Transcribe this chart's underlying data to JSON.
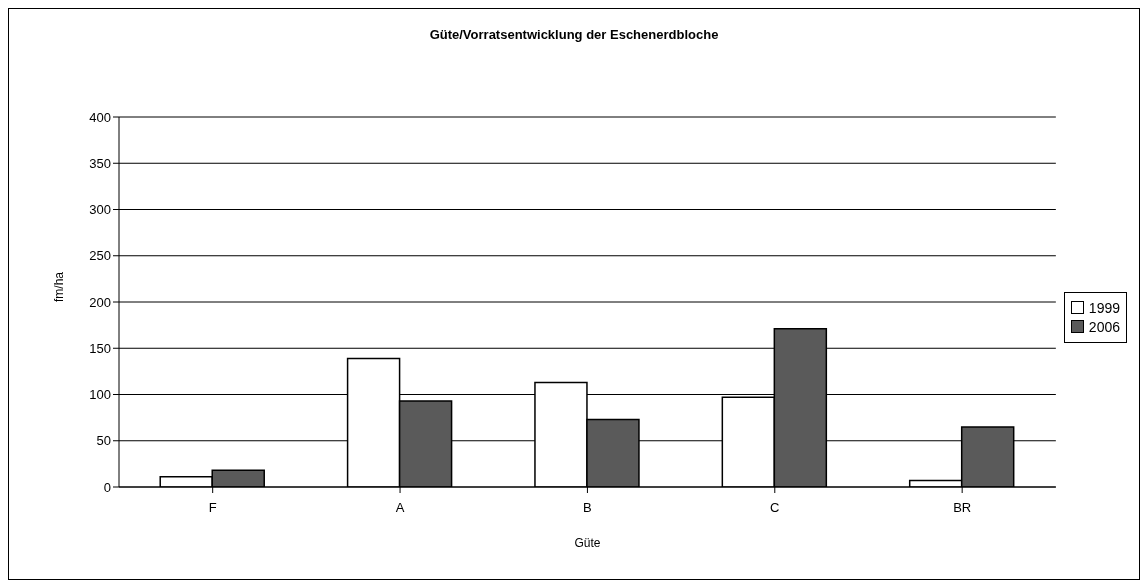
{
  "chart_data": {
    "type": "bar",
    "title": "Güte/Vorratsentwicklung der Eschenerdbloche",
    "xlabel": "Güte",
    "ylabel": "fm/ha",
    "categories": [
      "F",
      "A",
      "B",
      "C",
      "BR"
    ],
    "series": [
      {
        "name": "1999",
        "color": "#ffffff",
        "values": [
          11,
          139,
          113,
          97,
          7
        ]
      },
      {
        "name": "2006",
        "color": "#5a5a5a",
        "values": [
          18,
          93,
          73,
          171,
          65
        ]
      }
    ],
    "ylim": [
      0,
      400
    ],
    "yticks": [
      0,
      50,
      100,
      150,
      200,
      250,
      300,
      350,
      400
    ],
    "grid": "y",
    "legend": "right"
  }
}
